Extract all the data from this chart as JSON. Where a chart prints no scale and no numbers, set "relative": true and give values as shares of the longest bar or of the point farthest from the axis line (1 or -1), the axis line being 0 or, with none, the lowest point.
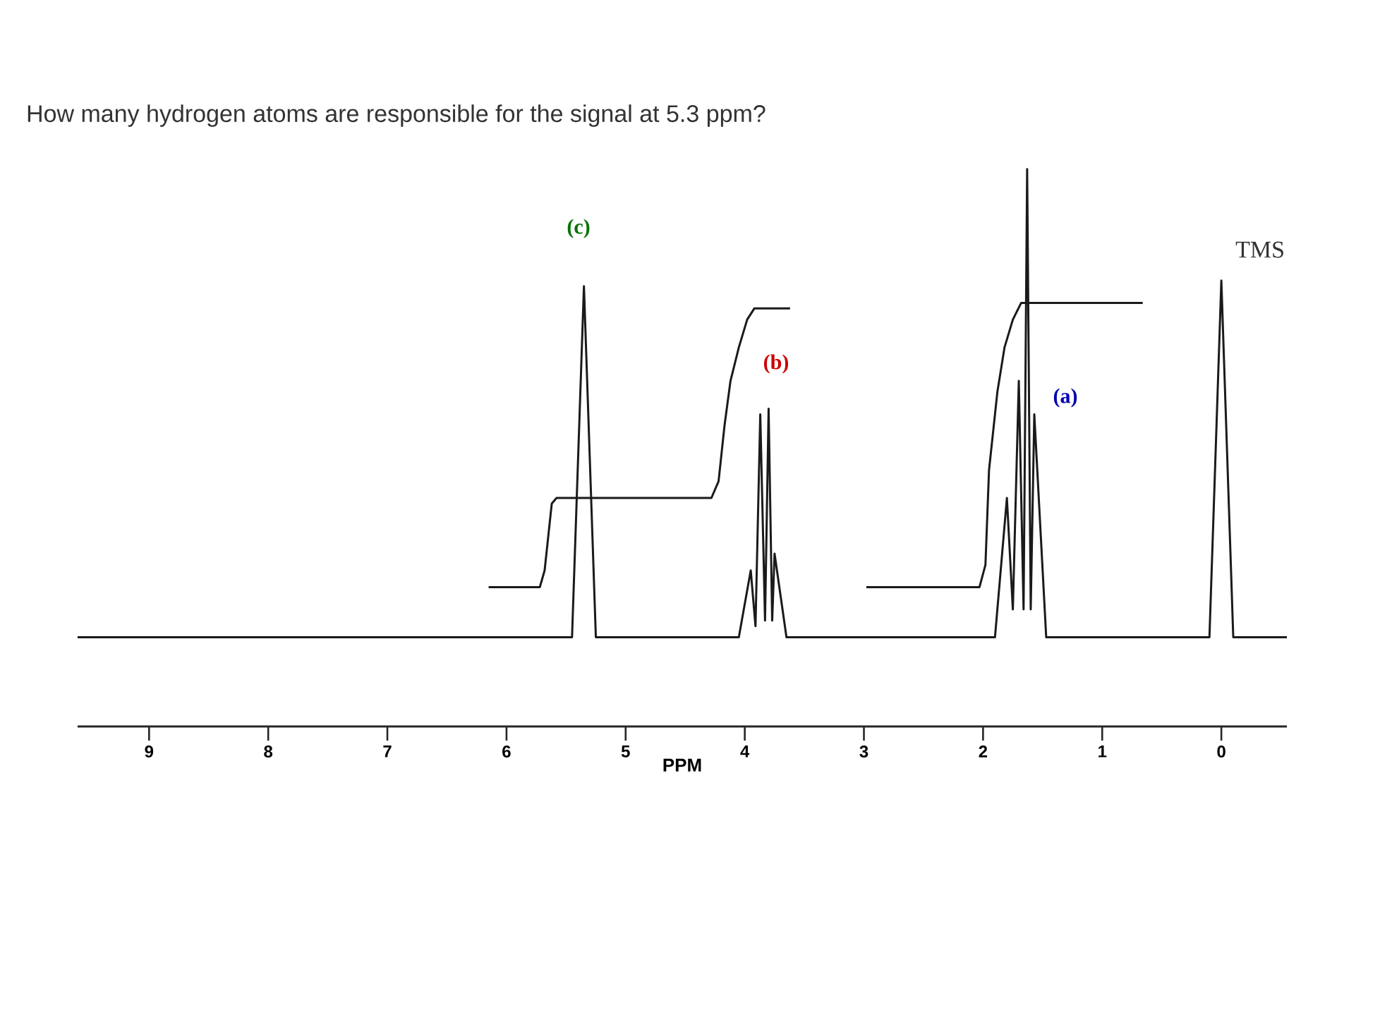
{
  "chart_data": {
    "type": "line",
    "title": "How many hydrogen atoms are responsible for the signal at 5.3 ppm?",
    "xlabel": "PPM",
    "relative": true,
    "xlim": [
      9.6,
      -0.55
    ],
    "xticks": [
      9,
      8,
      7,
      6,
      5,
      4,
      3,
      2,
      1,
      0
    ],
    "series": [
      {
        "color": "#1a1a1a",
        "x": [
          9.6,
          5.45,
          5.35,
          5.25,
          4.05,
          3.95,
          3.91,
          3.87,
          3.83,
          3.8,
          3.77,
          3.75,
          3.65,
          1.9,
          1.8,
          1.75,
          1.7,
          1.66,
          1.63,
          1.6,
          1.57,
          1.47,
          0.1,
          0,
          -0.1,
          -0.55
        ],
        "values": [
          0.16,
          0.16,
          0.79,
          0.16,
          0.16,
          0.28,
          0.18,
          0.56,
          0.19,
          0.57,
          0.19,
          0.31,
          0.16,
          0.16,
          0.41,
          0.21,
          0.62,
          0.21,
          1.0,
          0.21,
          0.56,
          0.16,
          0.16,
          0.8,
          0.16,
          0.16
        ]
      },
      {
        "color": "#1a1a1a",
        "x": [
          6.15,
          5.72,
          5.68,
          5.62,
          5.58,
          4.28,
          4.22,
          4.17,
          4.12,
          4.05,
          3.98,
          3.92,
          3.62
        ],
        "values": [
          0.25,
          0.25,
          0.28,
          0.4,
          0.41,
          0.41,
          0.44,
          0.54,
          0.62,
          0.68,
          0.73,
          0.75,
          0.75
        ]
      },
      {
        "color": "#1a1a1a",
        "x": [
          2.98,
          2.03,
          1.98,
          1.95,
          1.88,
          1.82,
          1.75,
          1.68,
          0.66
        ],
        "values": [
          0.25,
          0.25,
          0.29,
          0.46,
          0.6,
          0.68,
          0.73,
          0.76,
          0.76
        ]
      }
    ],
    "annotations": [
      "(c)",
      "(b)",
      "(a)",
      "TMS"
    ]
  }
}
